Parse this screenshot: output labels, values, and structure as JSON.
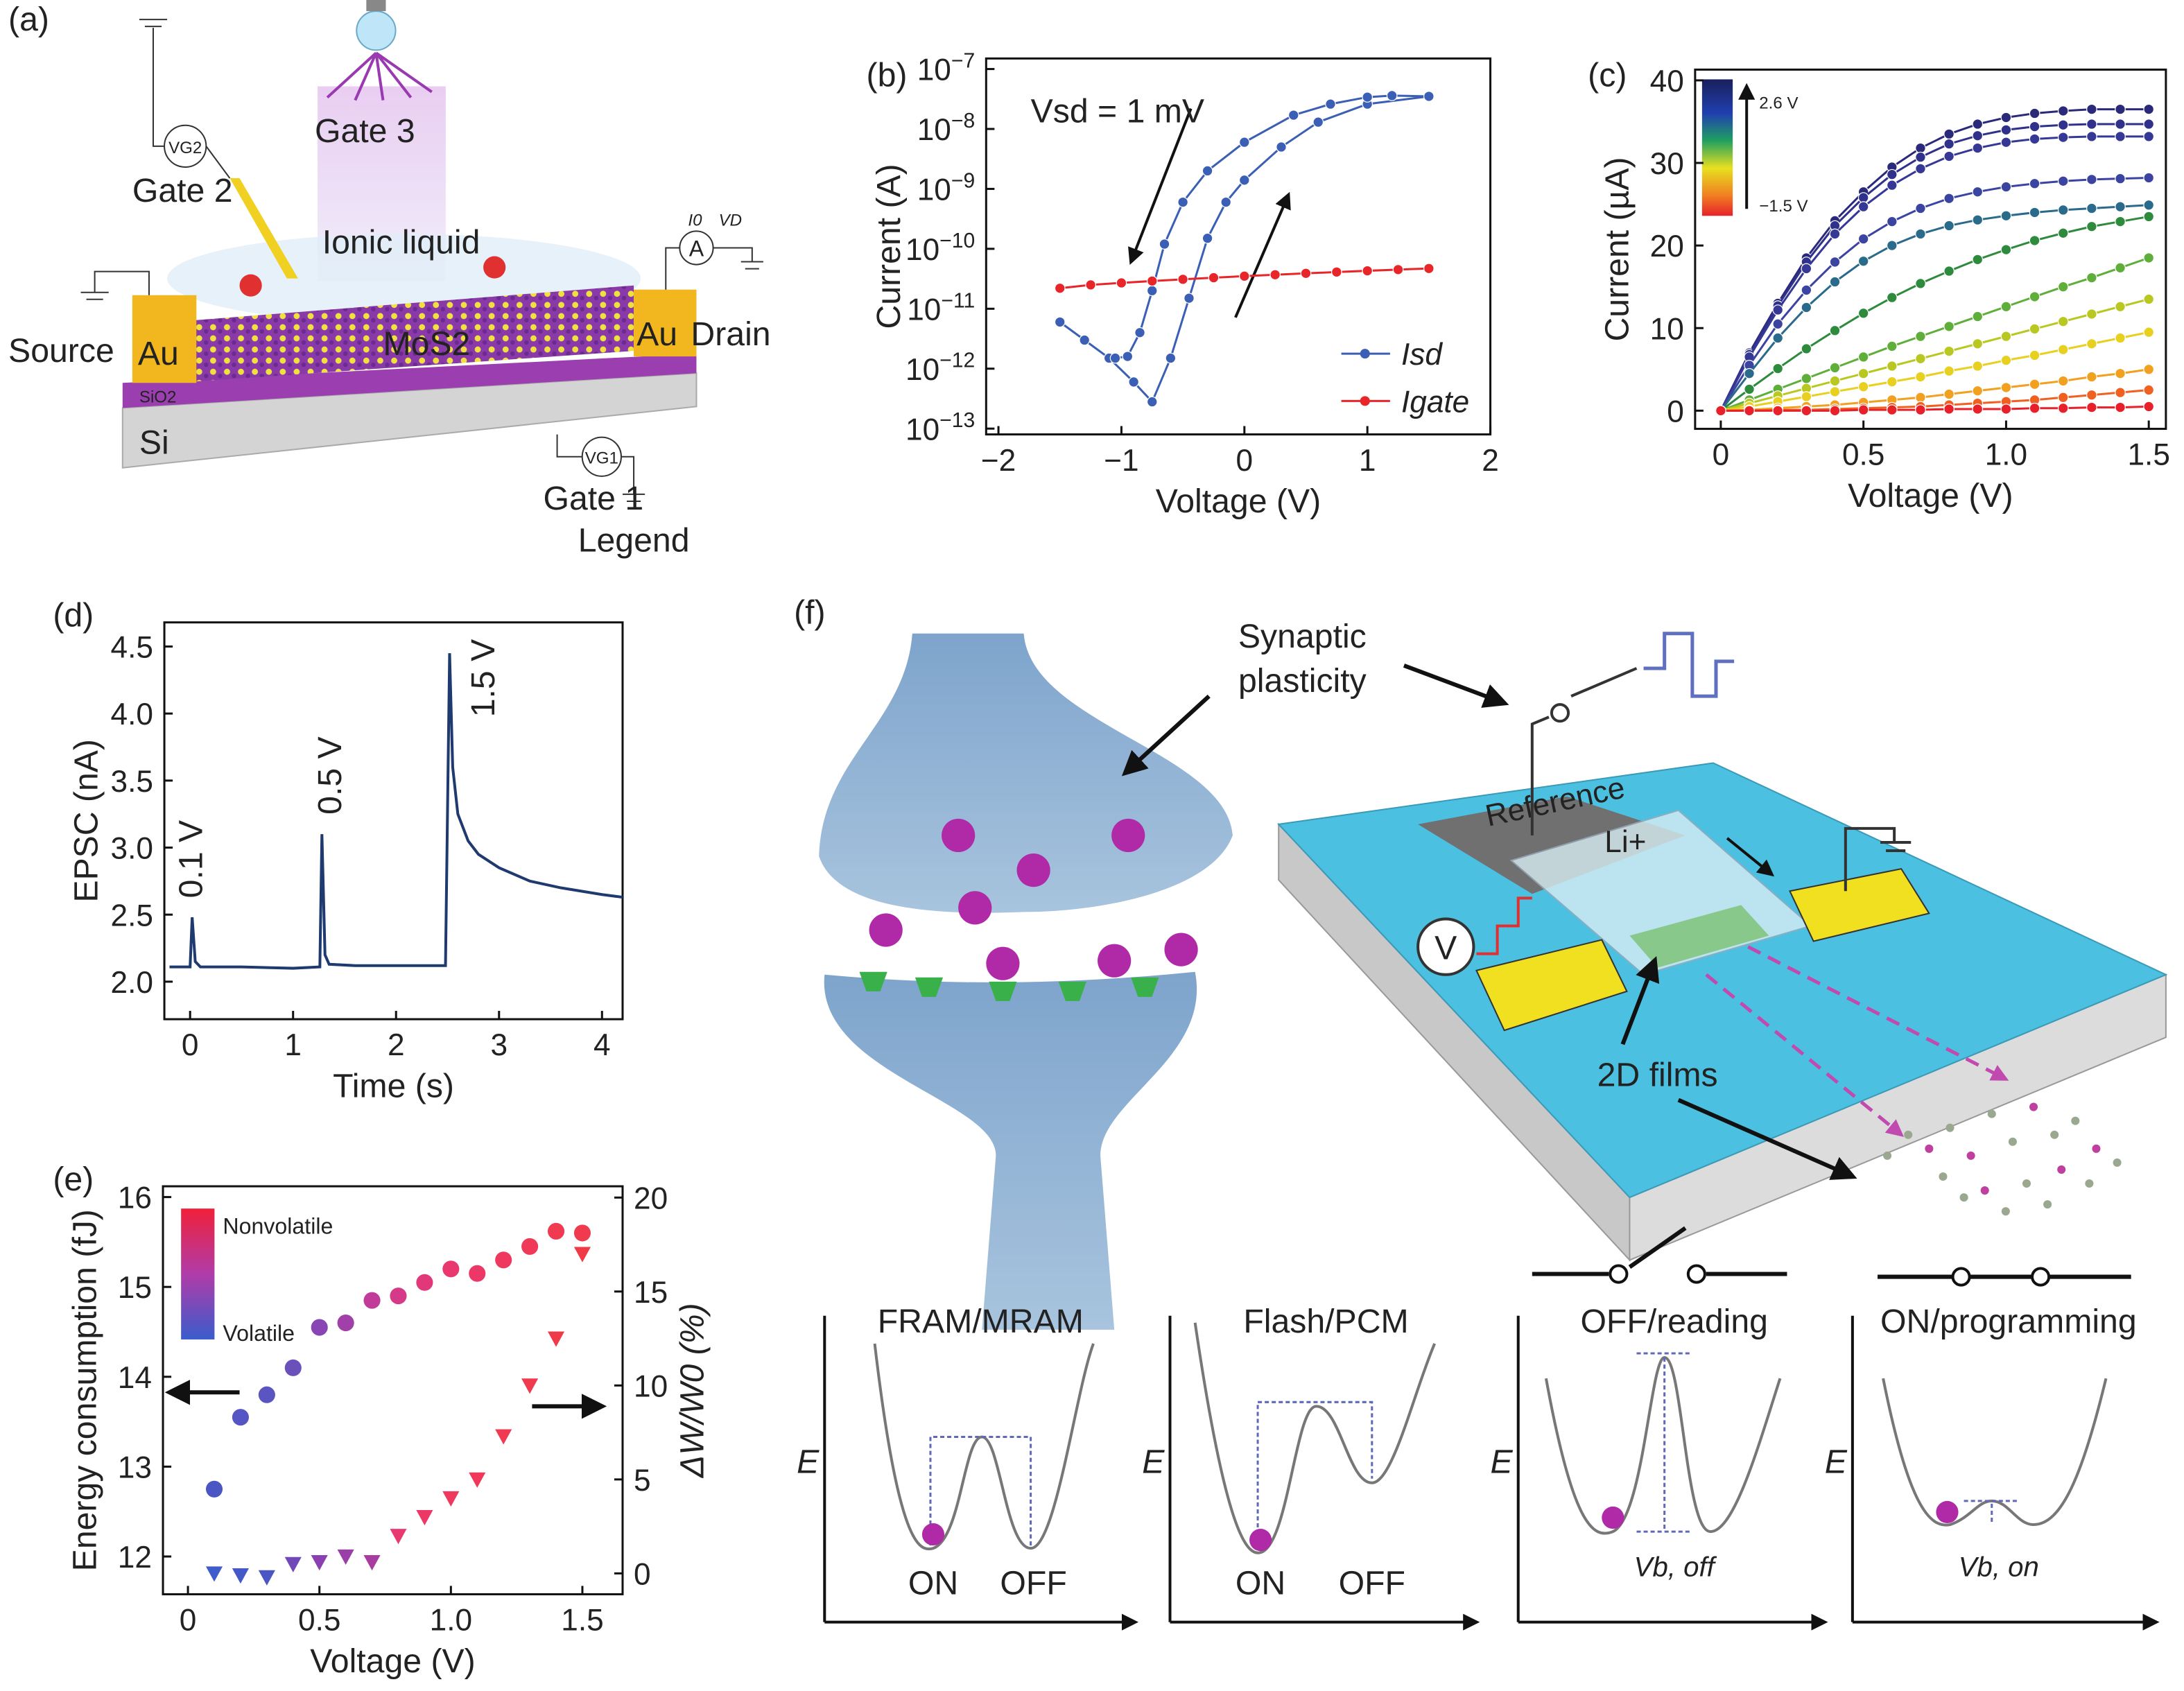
{
  "diagram_a": {
    "panel": "(a)",
    "gate3": "Gate 3",
    "gate2": "Gate 2",
    "ionic": "Ionic liquid",
    "source": "Source",
    "au_left": "Au",
    "mos2": "MoS2",
    "au_right": "Au",
    "drain": "Drain",
    "sio2": "SiO2",
    "si": "Si",
    "gate1": "Gate 1",
    "legend": "Legend",
    "vg2": "VG2",
    "vg1": "VG1",
    "ammeter": "A",
    "i0": "I0",
    "vd": "VD"
  },
  "chart_data": [
    {
      "type": "line",
      "panel": "(b)",
      "xlabel": "Voltage (V)",
      "ylabel": "Current (A)",
      "ylog": true,
      "markers": true,
      "legend": "lower right",
      "annotations": [
        "Vsd = 1 mV"
      ],
      "xlim": [
        -2.1,
        2.0
      ],
      "ylim": [
        8e-14,
        1.5e-07
      ],
      "xticks": [
        {
          "value": -2,
          "label": "−2"
        },
        {
          "value": -1,
          "label": "−1"
        },
        0,
        1,
        2
      ],
      "yticks": [
        {
          "value": 1e-13,
          "label": "10",
          "exponent": "−13"
        },
        {
          "value": 1e-12,
          "label": "10",
          "exponent": "−12"
        },
        {
          "value": 1e-11,
          "label": "10",
          "exponent": "−11"
        },
        {
          "value": 1e-10,
          "label": "10",
          "exponent": "−10"
        },
        {
          "value": 1e-09,
          "label": "10",
          "exponent": "−9"
        },
        {
          "value": 1e-08,
          "label": "10",
          "exponent": "−8"
        },
        {
          "value": 1e-07,
          "label": "10",
          "exponent": "−7"
        }
      ],
      "series": [
        {
          "name": "Isd",
          "color": "#3a5fb5",
          "x": [
            -1.5,
            -1.3,
            -1.1,
            -0.9,
            -0.75,
            -0.6,
            -0.45,
            -0.3,
            -0.15,
            0,
            0.3,
            0.6,
            1.0,
            1.5,
            1.2,
            1.0,
            0.7,
            0.4,
            0,
            -0.3,
            -0.5,
            -0.65,
            -0.75,
            -0.85,
            -0.95,
            -1.05
          ],
          "values": [
            6e-12,
            3e-12,
            1.5e-12,
            6e-13,
            2.8e-13,
            1.5e-12,
            1.5e-11,
            1.5e-10,
            6e-10,
            1.4e-09,
            5e-09,
            1.3e-08,
            2.6e-08,
            3.5e-08,
            3.6e-08,
            3.4e-08,
            2.6e-08,
            1.7e-08,
            6e-09,
            2e-09,
            6e-10,
            1.2e-10,
            2e-11,
            4e-12,
            1.6e-12,
            1.5e-12
          ]
        },
        {
          "name": "Igate",
          "color": "#e8262a",
          "x": [
            -1.5,
            -1.25,
            -1.0,
            -0.75,
            -0.5,
            -0.25,
            0,
            0.25,
            0.5,
            0.75,
            1.0,
            1.25,
            1.5
          ],
          "values": [
            2.2e-11,
            2.5e-11,
            2.7e-11,
            2.9e-11,
            3.1e-11,
            3.3e-11,
            3.5e-11,
            3.7e-11,
            3.9e-11,
            4.1e-11,
            4.3e-11,
            4.5e-11,
            4.7e-11
          ]
        }
      ]
    },
    {
      "type": "line",
      "panel": "(c)",
      "xlabel": "Voltage (V)",
      "ylabel": "Current (µA)",
      "markers": true,
      "colorbar_labels": [
        "2.6 V",
        "−1.5 V"
      ],
      "xlim": [
        -0.09,
        1.56
      ],
      "ylim": [
        -2.2,
        41.3
      ],
      "xticks": [
        0,
        0.5,
        {
          "value": 1,
          "label": "1.0"
        },
        1.5
      ],
      "yticks": [
        0,
        10,
        20,
        30,
        40
      ],
      "x": [
        0,
        0.1,
        0.2,
        0.3,
        0.4,
        0.5,
        0.6,
        0.7,
        0.8,
        0.9,
        1.0,
        1.1,
        1.2,
        1.3,
        1.4,
        1.5
      ],
      "series": [
        {
          "color": "#2b2a7a",
          "values": [
            0,
            7,
            13,
            18.5,
            23,
            26.5,
            29.5,
            31.8,
            33.5,
            34.7,
            35.5,
            36,
            36.3,
            36.5,
            36.5,
            36.5
          ]
        },
        {
          "color": "#30318a",
          "values": [
            0,
            6.8,
            12.7,
            18,
            22.4,
            25.8,
            28.6,
            30.7,
            32.3,
            33.3,
            34,
            34.4,
            34.6,
            34.7,
            34.7,
            34.7
          ]
        },
        {
          "color": "#363896",
          "values": [
            0,
            6.5,
            12.2,
            17.2,
            21.4,
            24.7,
            27.3,
            29.3,
            30.8,
            31.8,
            32.5,
            32.9,
            33.1,
            33.2,
            33.2,
            33.2
          ]
        },
        {
          "color": "#3c44a2",
          "values": [
            0,
            5.5,
            10.5,
            14.6,
            18,
            20.8,
            22.9,
            24.5,
            25.7,
            26.5,
            27.1,
            27.5,
            27.8,
            28,
            28.1,
            28.2
          ]
        },
        {
          "color": "#2a6a8a",
          "values": [
            0,
            4.5,
            8.8,
            12.5,
            15.6,
            18.1,
            20,
            21.4,
            22.4,
            23.1,
            23.6,
            24,
            24.3,
            24.5,
            24.7,
            24.9
          ]
        },
        {
          "color": "#2e8b3e",
          "values": [
            0,
            2.6,
            5.1,
            7.5,
            9.7,
            11.8,
            13.7,
            15.4,
            16.9,
            18.3,
            19.5,
            20.6,
            21.5,
            22.3,
            22.9,
            23.5
          ]
        },
        {
          "color": "#5fae3a",
          "values": [
            0,
            1.3,
            2.6,
            3.9,
            5.2,
            6.5,
            7.8,
            9,
            10.2,
            11.4,
            12.6,
            13.8,
            15,
            16.1,
            17.3,
            18.5
          ]
        },
        {
          "color": "#b8c820",
          "values": [
            0,
            0.9,
            1.8,
            2.7,
            3.6,
            4.5,
            5.4,
            6.3,
            7.2,
            8.1,
            9,
            9.9,
            10.8,
            11.7,
            12.6,
            13.5
          ]
        },
        {
          "color": "#e8d020",
          "values": [
            0,
            0.5,
            1.1,
            1.7,
            2.3,
            2.9,
            3.5,
            4.1,
            4.8,
            5.4,
            6.1,
            6.7,
            7.4,
            8.1,
            8.8,
            9.5
          ]
        },
        {
          "color": "#f2a020",
          "values": [
            0,
            0.1,
            0.3,
            0.5,
            0.7,
            1,
            1.3,
            1.6,
            2,
            2.4,
            2.8,
            3.2,
            3.6,
            4.1,
            4.5,
            5
          ]
        },
        {
          "color": "#f06020",
          "values": [
            0,
            0,
            0.1,
            0.1,
            0.2,
            0.3,
            0.4,
            0.5,
            0.7,
            0.9,
            1.1,
            1.3,
            1.6,
            1.9,
            2.2,
            2.5
          ]
        },
        {
          "color": "#e8202a",
          "values": [
            0,
            0,
            0,
            0,
            0,
            0.1,
            0.1,
            0.1,
            0.2,
            0.2,
            0.2,
            0.3,
            0.3,
            0.4,
            0.4,
            0.5
          ]
        }
      ]
    },
    {
      "type": "line",
      "panel": "(d)",
      "xlabel": "Time (s)",
      "ylabel": "EPSC (nA)",
      "annotations": [
        "0.1 V",
        "0.5 V",
        "1.5 V"
      ],
      "xlim": [
        -0.25,
        4.2
      ],
      "ylim": [
        1.72,
        4.68
      ],
      "xticks": [
        0,
        1,
        2,
        3,
        4
      ],
      "yticks": [
        {
          "value": 2,
          "label": "2.0"
        },
        2.5,
        {
          "value": 3,
          "label": "3.0"
        },
        3.5,
        {
          "value": 4,
          "label": "4.0"
        },
        4.5
      ],
      "x": [
        -0.2,
        0,
        0.02,
        0.05,
        0.1,
        0.5,
        1.0,
        1.26,
        1.28,
        1.31,
        1.35,
        1.6,
        2.0,
        2.48,
        2.52,
        2.55,
        2.6,
        2.7,
        2.8,
        3.0,
        3.3,
        3.6,
        4.0,
        4.2
      ],
      "series": [
        {
          "color": "#1f3a6e",
          "values": [
            2.11,
            2.11,
            2.48,
            2.15,
            2.11,
            2.11,
            2.1,
            2.11,
            3.1,
            2.2,
            2.13,
            2.12,
            2.12,
            2.12,
            4.45,
            3.6,
            3.25,
            3.05,
            2.95,
            2.85,
            2.75,
            2.7,
            2.65,
            2.63
          ]
        }
      ]
    },
    {
      "type": "scatter",
      "panel": "(e)",
      "xlabel": "Voltage (V)",
      "ylabel": "Energy consumption (fJ)",
      "y2label": "ΔW/W0 (%)",
      "colorbar_labels": [
        "Nonvolatile",
        "Volatile"
      ],
      "xlim": [
        -0.095,
        1.653
      ],
      "ylim": [
        11.58,
        16.12
      ],
      "y2lim": [
        -1.11,
        20.6
      ],
      "xticks": [
        0,
        0.5,
        {
          "value": 1,
          "label": "1.0"
        },
        1.5
      ],
      "yticks": [
        12,
        13,
        14,
        15,
        16
      ],
      "y2ticks": [
        0,
        5,
        10,
        15,
        20
      ],
      "x": [
        0.1,
        0.2,
        0.3,
        0.4,
        0.5,
        0.6,
        0.7,
        0.8,
        0.9,
        1.0,
        1.1,
        1.2,
        1.3,
        1.4,
        1.5
      ],
      "series": [
        {
          "marker": "circle",
          "values": [
            12.75,
            13.55,
            13.8,
            14.1,
            14.55,
            14.6,
            14.85,
            14.9,
            15.05,
            15.2,
            15.15,
            15.3,
            15.45,
            15.62,
            15.6
          ],
          "colors": [
            "#4a56c4",
            "#5556c4",
            "#5a55c0",
            "#6a50bb",
            "#8a45b5",
            "#a040a8",
            "#c03c98",
            "#d43a88",
            "#e0387a",
            "#e8386e",
            "#ec3866",
            "#ee385e",
            "#f03858",
            "#f03a52",
            "#f03a4e"
          ]
        },
        {
          "marker": "triangle",
          "axis": "y2",
          "values": [
            0,
            -0.1,
            -0.2,
            0.5,
            0.6,
            0.9,
            0.6,
            2,
            3,
            4,
            5,
            7.3,
            10,
            12.5,
            17
          ],
          "colors": [
            "#3f5ccc",
            "#4558c8",
            "#4a56c4",
            "#7048b8",
            "#8a40b0",
            "#9a3ea8",
            "#a83ca0",
            "#e83a70",
            "#ec3866",
            "#ee385e",
            "#f03858",
            "#f03a52",
            "#f03a4e",
            "#f03a4a",
            "#f03a46"
          ]
        }
      ]
    }
  ],
  "diagram_f": {
    "panel": "(f)",
    "synaptic": [
      "Synaptic",
      "plasticity"
    ],
    "reference": "Reference",
    "li": "Li+",
    "v": "V",
    "films": "2D films",
    "wells": [
      {
        "title": "FRAM/MRAM",
        "e": "E",
        "left": "ON",
        "right": "OFF"
      },
      {
        "title": "Flash/PCM",
        "e": "E",
        "left": "ON",
        "right": "OFF"
      },
      {
        "title": "OFF/reading",
        "e": "E",
        "barrier": "Vb, off"
      },
      {
        "title": "ON/programming",
        "e": "E",
        "barrier": "Vb, on"
      }
    ]
  }
}
